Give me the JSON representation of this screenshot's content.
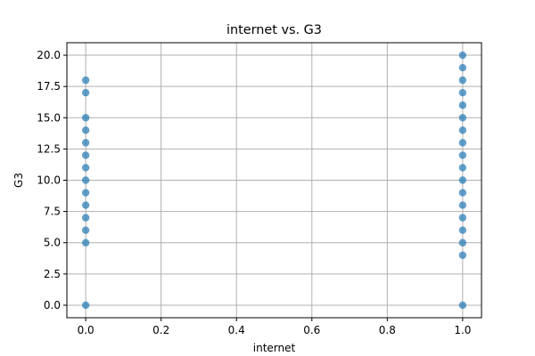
{
  "chart_data": {
    "type": "scatter",
    "title": "internet vs. G3",
    "xlabel": "internet",
    "ylabel": "G3",
    "xlim": [
      -0.05,
      1.05
    ],
    "ylim": [
      -1.0,
      21.0
    ],
    "x_ticks": [
      0.0,
      0.2,
      0.4,
      0.6,
      0.8,
      1.0
    ],
    "x_tick_labels": [
      "0.0",
      "0.2",
      "0.4",
      "0.6",
      "0.8",
      "1.0"
    ],
    "y_ticks": [
      0.0,
      2.5,
      5.0,
      7.5,
      10.0,
      12.5,
      15.0,
      17.5,
      20.0
    ],
    "y_tick_labels": [
      "0.0",
      "2.5",
      "5.0",
      "7.5",
      "10.0",
      "12.5",
      "15.0",
      "17.5",
      "20.0"
    ],
    "grid": true,
    "color": "#1f77b4",
    "series": [
      {
        "points": [
          {
            "x": 0,
            "y": 0
          },
          {
            "x": 0,
            "y": 5
          },
          {
            "x": 0,
            "y": 6
          },
          {
            "x": 0,
            "y": 7
          },
          {
            "x": 0,
            "y": 8
          },
          {
            "x": 0,
            "y": 9
          },
          {
            "x": 0,
            "y": 10
          },
          {
            "x": 0,
            "y": 11
          },
          {
            "x": 0,
            "y": 12
          },
          {
            "x": 0,
            "y": 13
          },
          {
            "x": 0,
            "y": 14
          },
          {
            "x": 0,
            "y": 15
          },
          {
            "x": 0,
            "y": 17
          },
          {
            "x": 0,
            "y": 18
          },
          {
            "x": 1,
            "y": 0
          },
          {
            "x": 1,
            "y": 4
          },
          {
            "x": 1,
            "y": 5
          },
          {
            "x": 1,
            "y": 6
          },
          {
            "x": 1,
            "y": 7
          },
          {
            "x": 1,
            "y": 8
          },
          {
            "x": 1,
            "y": 9
          },
          {
            "x": 1,
            "y": 10
          },
          {
            "x": 1,
            "y": 11
          },
          {
            "x": 1,
            "y": 12
          },
          {
            "x": 1,
            "y": 13
          },
          {
            "x": 1,
            "y": 14
          },
          {
            "x": 1,
            "y": 15
          },
          {
            "x": 1,
            "y": 16
          },
          {
            "x": 1,
            "y": 17
          },
          {
            "x": 1,
            "y": 18
          },
          {
            "x": 1,
            "y": 19
          },
          {
            "x": 1,
            "y": 20
          }
        ]
      }
    ]
  }
}
